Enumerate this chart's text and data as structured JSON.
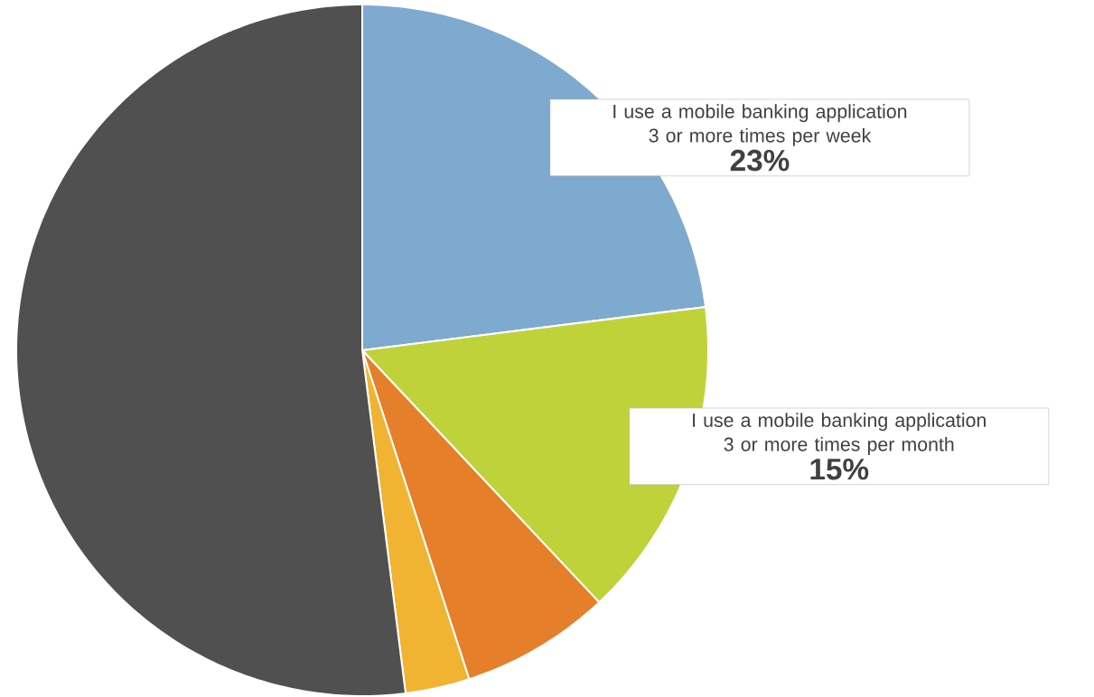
{
  "chart_data": {
    "type": "pie",
    "categories": [
      "I use a mobile banking application 3 or more times per week",
      "I use a mobile banking application 3 or more times per month",
      null,
      null,
      null
    ],
    "values": [
      23,
      15,
      7,
      3,
      52
    ],
    "colors": [
      "#7faacf",
      "#c0d23a",
      "#e57f2a",
      "#f0b432",
      "#505050"
    ],
    "value_labels": [
      "23%",
      "15%",
      null,
      null,
      null
    ]
  }
}
